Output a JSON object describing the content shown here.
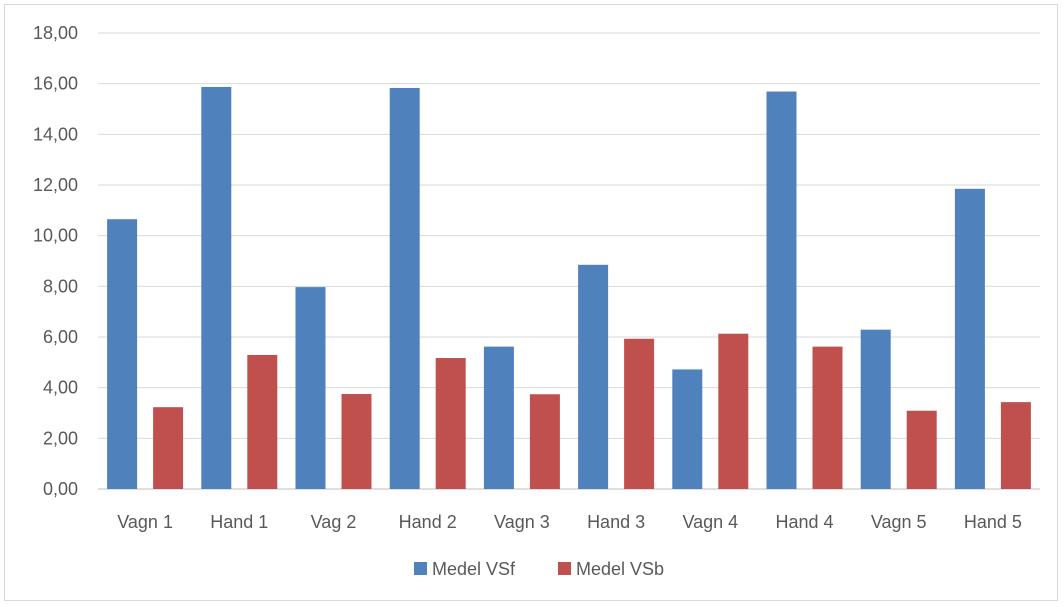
{
  "chart_data": {
    "type": "bar",
    "title": "",
    "xlabel": "",
    "ylabel": "",
    "categories": [
      "Vagn 1",
      "Hand 1",
      "Vag 2",
      "Hand 2",
      "Vagn 3",
      "Hand 3",
      "Vagn 4",
      "Hand 4",
      "Vagn 5",
      "Hand 5"
    ],
    "series": [
      {
        "name": "Medel VSf",
        "color": "#4f81bd",
        "values": [
          10.65,
          15.87,
          7.97,
          15.83,
          5.62,
          8.85,
          4.72,
          15.69,
          6.29,
          11.85
        ]
      },
      {
        "name": "Medel VSb",
        "color": "#c0504d",
        "values": [
          3.23,
          5.29,
          3.75,
          5.17,
          3.74,
          5.93,
          6.13,
          5.62,
          3.09,
          3.43
        ]
      }
    ],
    "ylim": [
      0,
      18
    ],
    "yticks": [
      "0,00",
      "2,00",
      "4,00",
      "6,00",
      "8,00",
      "10,00",
      "12,00",
      "14,00",
      "16,00",
      "18,00"
    ],
    "grid": true,
    "legend_position": "bottom"
  }
}
